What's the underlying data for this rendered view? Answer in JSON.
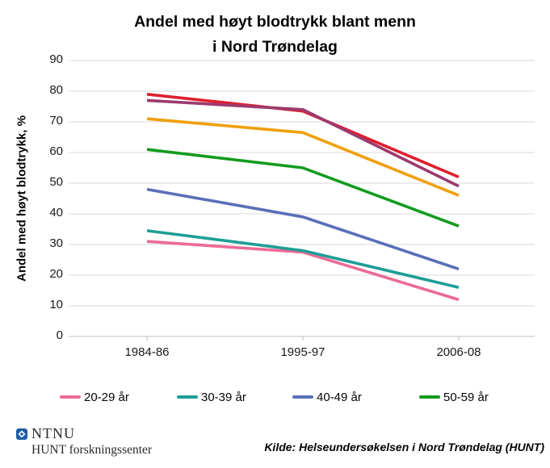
{
  "title": {
    "line1": "Andel med høyt blodtrykk blant menn",
    "line2": "i Nord Trøndelag"
  },
  "chart_data": {
    "type": "line",
    "categories": [
      "1984-86",
      "1995-97",
      "2006-08"
    ],
    "series": [
      {
        "id": "20-29-ar",
        "name": "20-29 år",
        "color": "#ec6a94",
        "values": [
          31,
          27.5,
          12
        ],
        "in_legend": true
      },
      {
        "id": "30-39-ar",
        "name": "30-39 år",
        "color": "#1d9e96",
        "values": [
          34.5,
          28,
          16
        ],
        "in_legend": true
      },
      {
        "id": "40-49-ar",
        "name": "40-49 år",
        "color": "#5a6fb7",
        "values": [
          48,
          39,
          22
        ],
        "in_legend": true
      },
      {
        "id": "50-59-ar",
        "name": "50-59 år",
        "color": "#129b1e",
        "values": [
          61,
          55,
          36
        ],
        "in_legend": true
      },
      {
        "id": "orange-unlabeled",
        "name": "",
        "color": "#f0a00c",
        "values": [
          71,
          66.5,
          46
        ],
        "in_legend": false
      },
      {
        "id": "red-unlabeled",
        "name": "",
        "color": "#de1f2e",
        "values": [
          79,
          73.5,
          52
        ],
        "in_legend": false
      },
      {
        "id": "purple-unlabeled",
        "name": "",
        "color": "#9d3a6d",
        "values": [
          77,
          74,
          49
        ],
        "in_legend": false
      }
    ],
    "ylabel": "Andel med høyt blodtrykk, %",
    "xlabel": "",
    "ylim": [
      0,
      90
    ],
    "yticks": [
      0,
      10,
      20,
      30,
      40,
      50,
      60,
      70,
      80,
      90
    ],
    "grid": "horizontal",
    "legend_position": "bottom"
  },
  "footer": {
    "ntnu": "NTNU",
    "hunt": "HUNT forskningssenter",
    "source": "Kilde: Helseundersøkelsen i Nord Trøndelag (HUNT)"
  },
  "colors": {
    "gridline": "#d9d9d9",
    "axis": "#bfbfbf",
    "ntnu_blue": "#1e5ca8",
    "text": "#050505"
  }
}
